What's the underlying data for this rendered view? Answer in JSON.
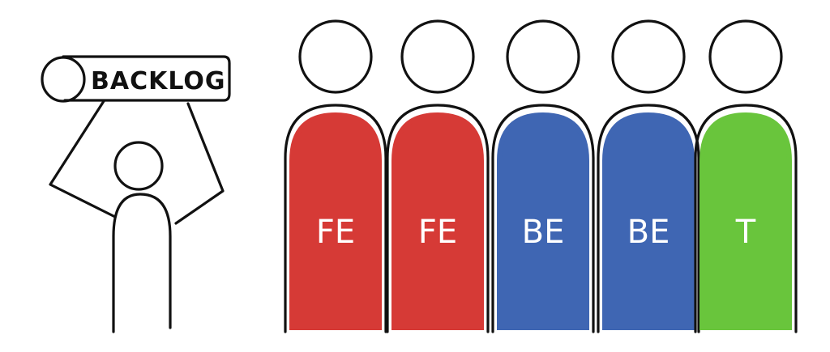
{
  "scroll": {
    "label": "BACKLOG"
  },
  "team": [
    {
      "label": "FE",
      "color": "#d63a36"
    },
    {
      "label": "FE",
      "color": "#d63a36"
    },
    {
      "label": "BE",
      "color": "#3f66b3"
    },
    {
      "label": "BE",
      "color": "#3f66b3"
    },
    {
      "label": "T",
      "color": "#69c53c"
    }
  ]
}
